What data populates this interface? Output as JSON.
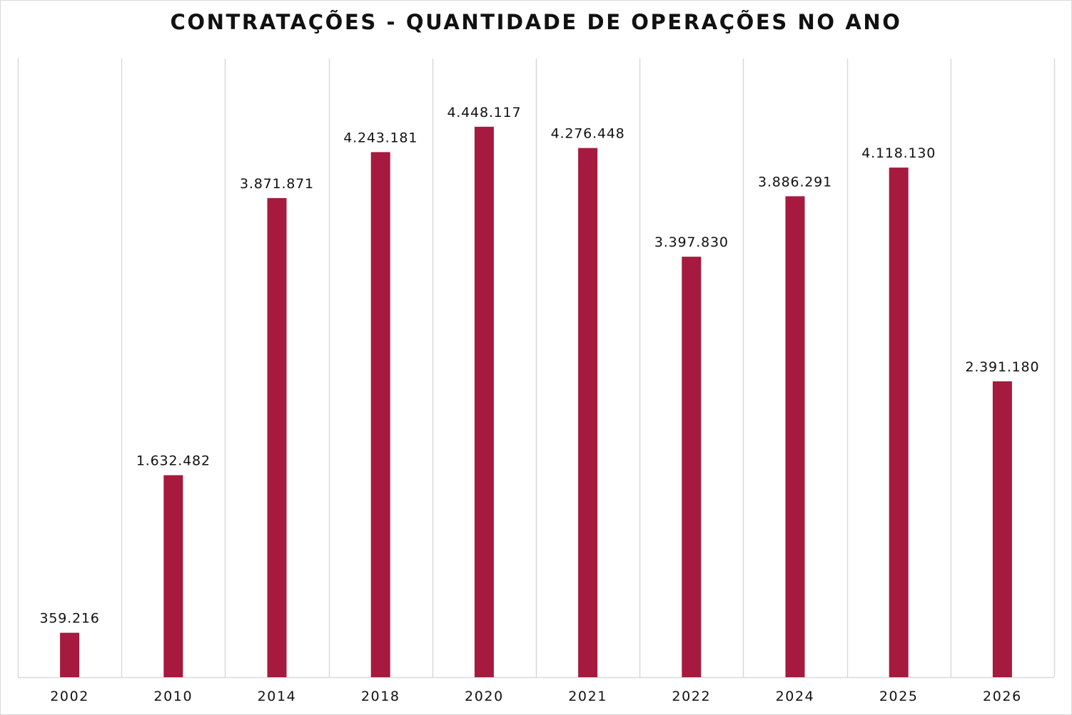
{
  "chart_data": {
    "type": "bar",
    "title": "CONTRATAÇÕES - QUANTIDADE DE OPERAÇÕES NO ANO",
    "categories": [
      "2002",
      "2010",
      "2014",
      "2018",
      "2020",
      "2021",
      "2022",
      "2024",
      "2025",
      "2026"
    ],
    "values": [
      359216,
      1632482,
      3871871,
      4243181,
      4448117,
      4276448,
      3397830,
      3886291,
      4118130,
      2391180
    ],
    "data_labels": [
      "359.216",
      "1.632.482",
      "3.871.871",
      "4.243.181",
      "4.448.117",
      "4.276.448",
      "3.397.830",
      "3.886.291",
      "4.118.130",
      "2.391.180"
    ],
    "xlabel": "",
    "ylabel": "",
    "ylim": [
      0,
      5000000
    ],
    "y_axis_visible": false,
    "grid": "vertical-category-separators",
    "legend": "none",
    "bar_color": "#a51a3e",
    "grid_color": "#d9d9d9",
    "axis_color": "#d9d9d9"
  }
}
